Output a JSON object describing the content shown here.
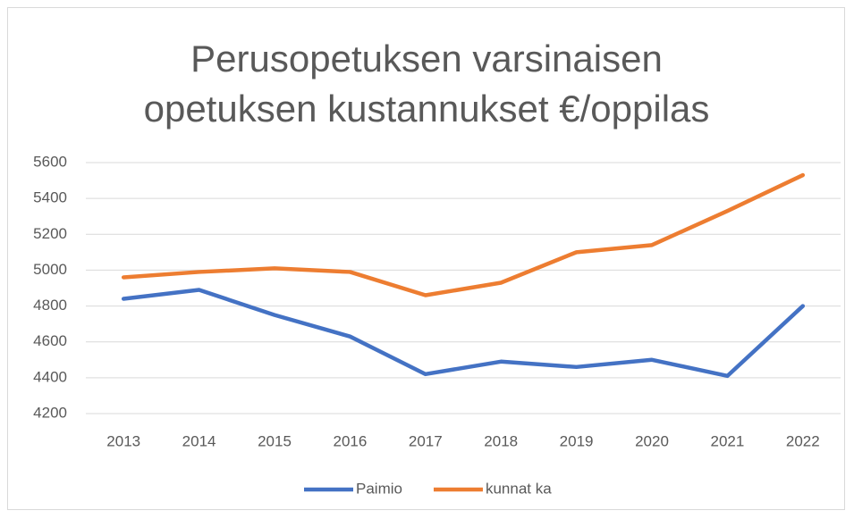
{
  "chart_data": {
    "type": "line",
    "title": "Perusopetuksen varsinaisen opetuksen kustannukset €/oppilas",
    "categories": [
      "2013",
      "2014",
      "2015",
      "2016",
      "2017",
      "2018",
      "2019",
      "2020",
      "2021",
      "2022"
    ],
    "series": [
      {
        "name": "Paimio",
        "color": "#4472c4",
        "values": [
          4840,
          4890,
          4750,
          4630,
          4420,
          4490,
          4460,
          4500,
          4410,
          4800
        ]
      },
      {
        "name": "kunnat ka",
        "color": "#ed7d31",
        "values": [
          4960,
          4990,
          5010,
          4990,
          4860,
          4930,
          5100,
          5140,
          5330,
          5530
        ]
      }
    ],
    "ylim": [
      4200,
      5600
    ],
    "yticks": [
      4200,
      4400,
      4600,
      4800,
      5000,
      5200,
      5400,
      5600
    ],
    "grid": true,
    "legend": "bottom"
  }
}
